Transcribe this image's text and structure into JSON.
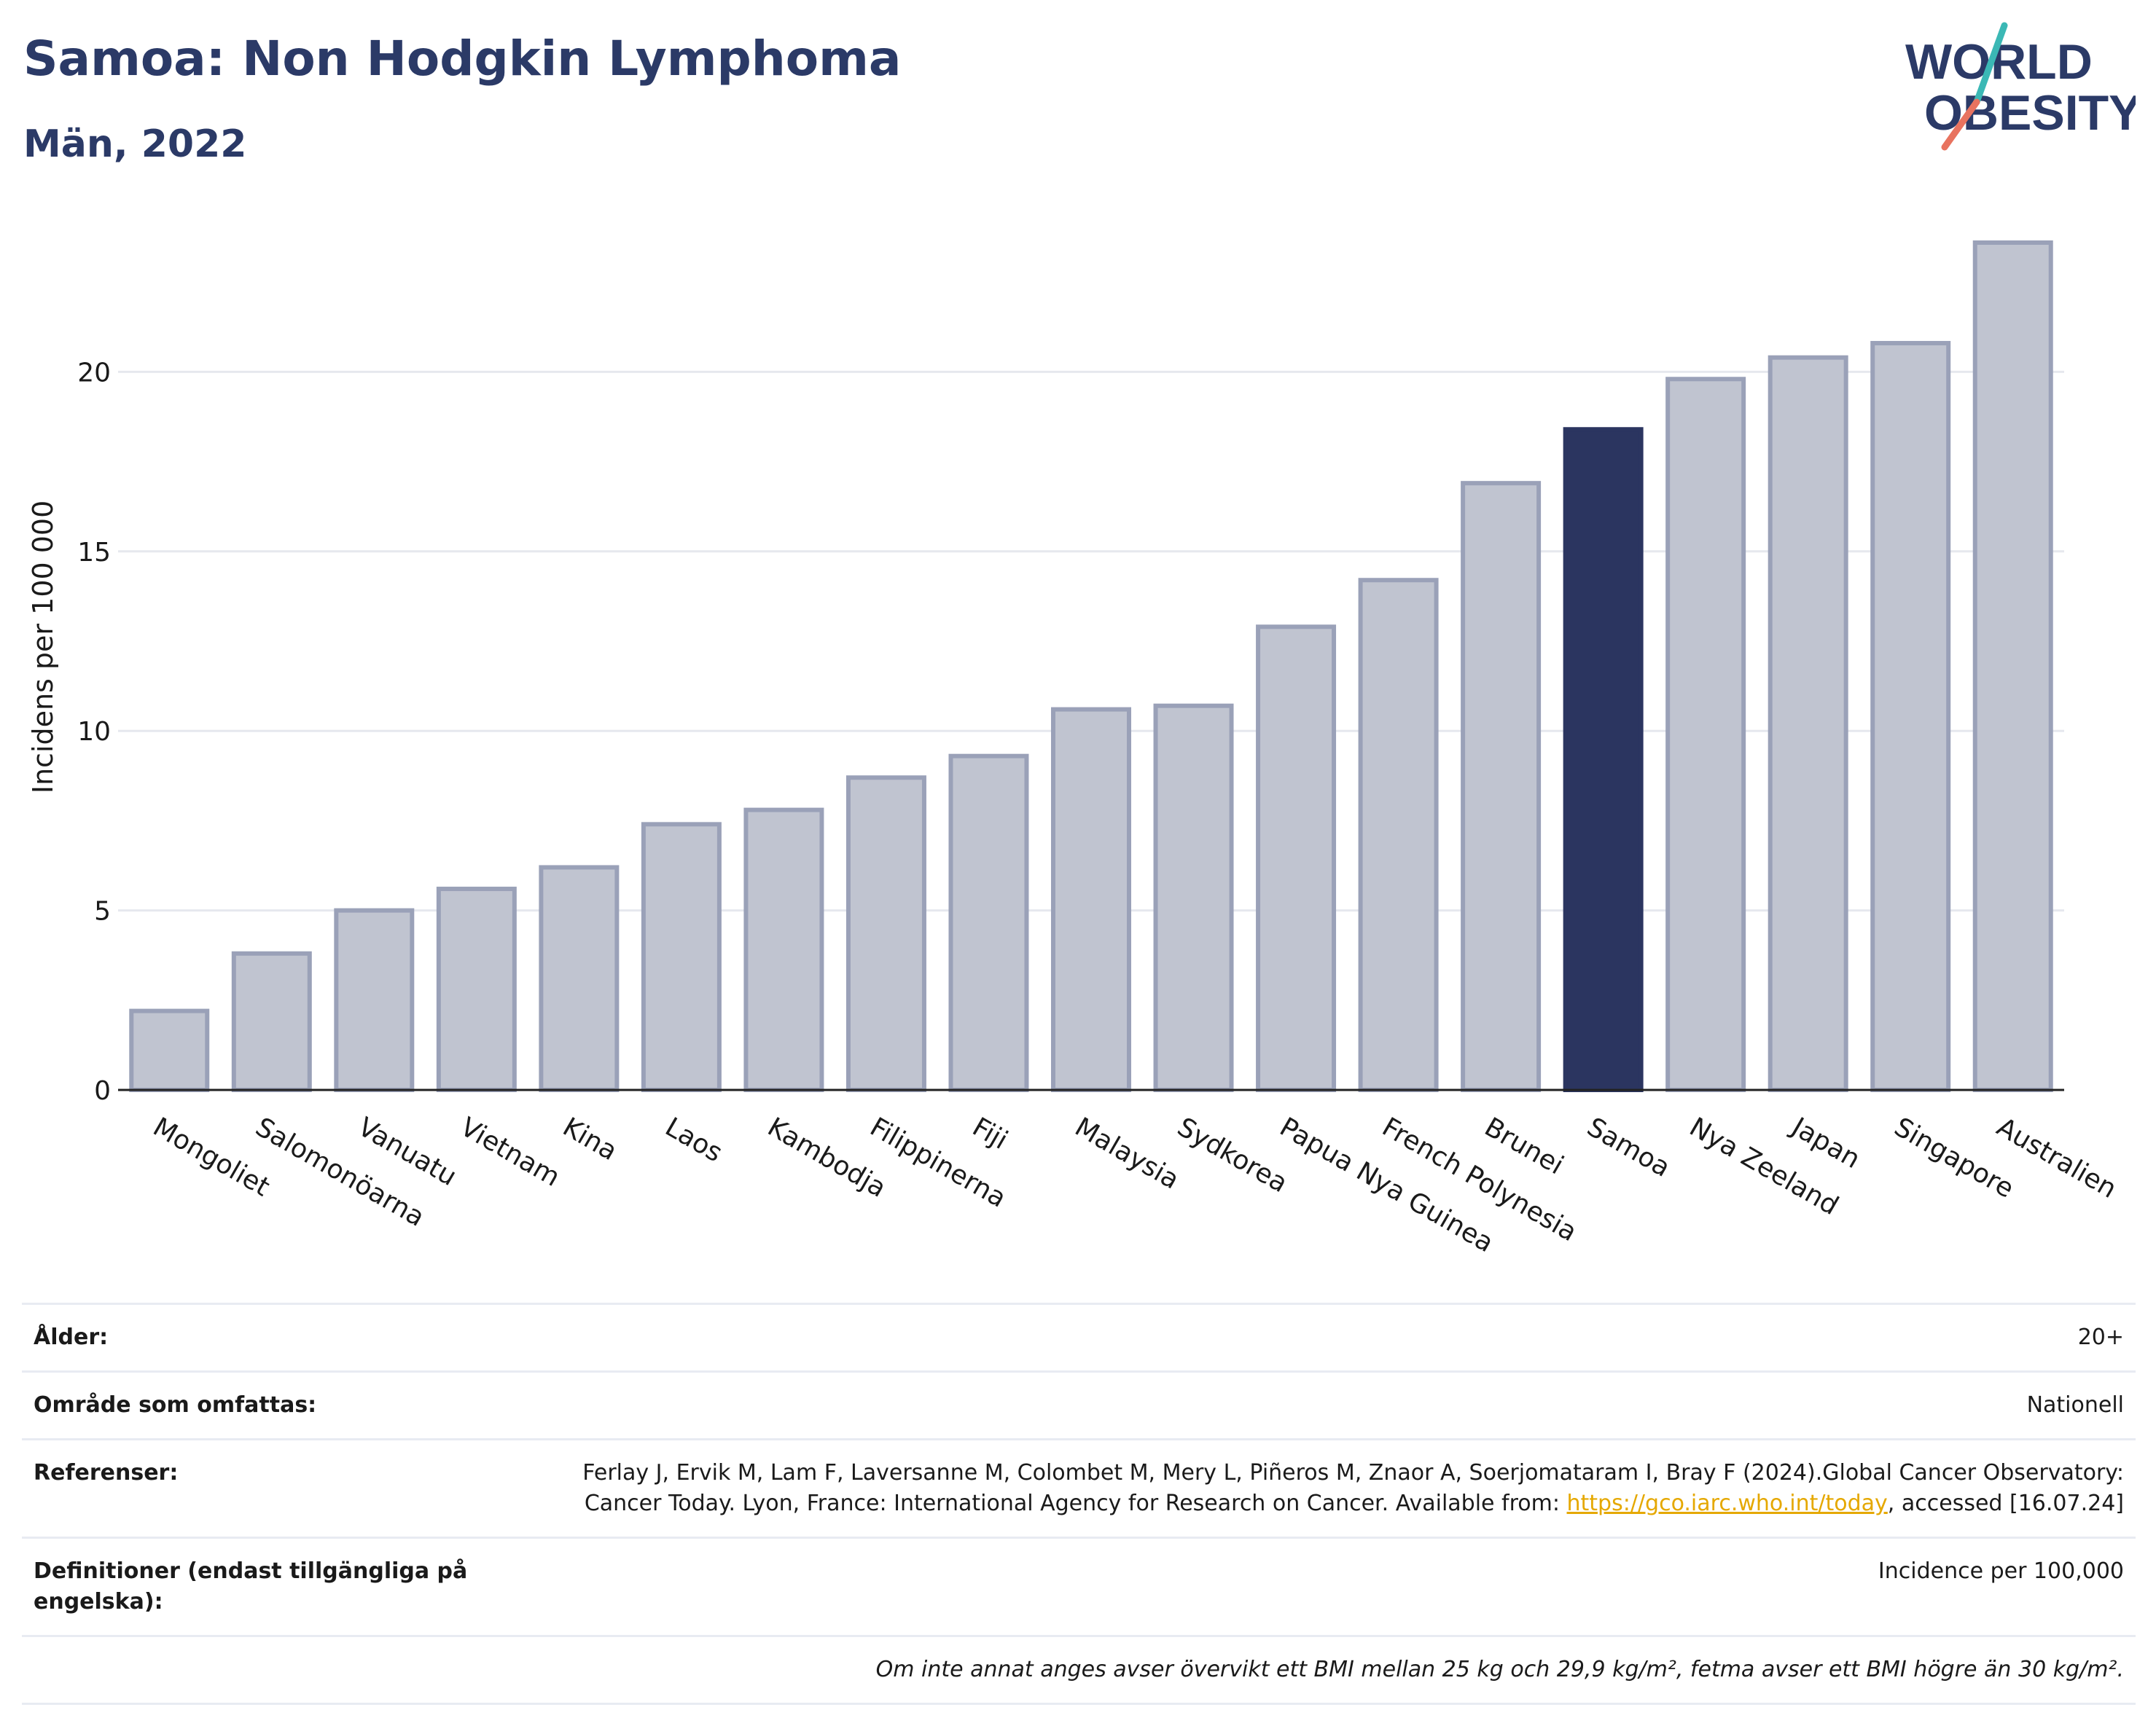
{
  "header": {
    "title": "Samoa: Non Hodgkin Lymphoma",
    "subtitle": "Män, 2022",
    "logo_line1": "WORLD",
    "logo_line2": "OBESITY"
  },
  "colors": {
    "highlight": "#2b3560",
    "bar_fill": "#c0c4d0",
    "bar_stroke": "#9aa1b8",
    "title": "#2b3a67",
    "link": "#e5a800",
    "logo_teal": "#3bb8b5",
    "logo_coral": "#e8735f"
  },
  "chart_data": {
    "type": "bar",
    "ylabel": "Incidens per 100 000",
    "xlabel": "",
    "ylim": [
      0,
      25
    ],
    "yticks": [
      0,
      5,
      10,
      15,
      20
    ],
    "grid": true,
    "highlight": "Samoa",
    "categories": [
      "Mongoliet",
      "Salomonöarna",
      "Vanuatu",
      "Vietnam",
      "Kina",
      "Laos",
      "Kambodja",
      "Filippinerna",
      "Fiji",
      "Malaysia",
      "Sydkorea",
      "Papua Nya Guinea",
      "French Polynesia",
      "Brunei",
      "Samoa",
      "Nya Zeeland",
      "Japan",
      "Singapore",
      "Australien"
    ],
    "values": [
      2.2,
      3.8,
      5.0,
      5.6,
      6.2,
      7.4,
      7.8,
      8.7,
      9.3,
      10.6,
      10.7,
      12.9,
      14.2,
      16.9,
      18.4,
      19.8,
      20.4,
      20.8,
      23.6
    ]
  },
  "info": {
    "rows": [
      {
        "label": "Ålder:",
        "value": "20+"
      },
      {
        "label": "Område som omfattas:",
        "value": "Nationell"
      },
      {
        "label": "Referenser:",
        "value_pre": "Ferlay J, Ervik M, Lam F, Laversanne M, Colombet M, Mery L, Piñeros M, Znaor A, Soerjomataram I, Bray F (2024).Global Cancer Observatory: Cancer Today. Lyon, France: International Agency for Research on Cancer. Available from: ",
        "link": "https://gco.iarc.who.int/today",
        "value_post": ", accessed [16.07.24]"
      },
      {
        "label": "Definitioner (endast tillgängliga på engelska):",
        "value": "Incidence per 100,000"
      }
    ],
    "note": "Om inte annat anges avser övervikt ett BMI mellan 25 kg och 29,9 kg/m², fetma avser ett BMI högre än 30 kg/m²."
  }
}
